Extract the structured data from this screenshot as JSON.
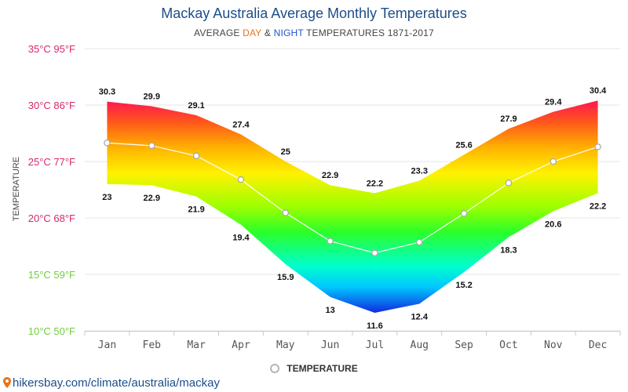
{
  "chart_data": {
    "type": "area",
    "title": "Mackay Australia Average Monthly Temperatures",
    "subtitle": {
      "prefix": "AVERAGE ",
      "day": "DAY",
      "amp": " & ",
      "night": "NIGHT",
      "suffix": " TEMPERATURES 1871-2017"
    },
    "ylabel": "TEMPERATURE",
    "ylim": [
      10,
      35
    ],
    "ytick_values": [
      35,
      30,
      25,
      20,
      15,
      10
    ],
    "ytick_labels": [
      "35°C 95°F",
      "30°C 86°F",
      "25°C 77°F",
      "20°C 68°F",
      "15°C 59°F",
      "10°C 50°F"
    ],
    "ytick_colors": [
      "#d6286e",
      "#d6286e",
      "#d6286e",
      "#d6286e",
      "#6fcf3b",
      "#6fcf3b"
    ],
    "categories": [
      "Jan",
      "Feb",
      "Mar",
      "Apr",
      "May",
      "Jun",
      "Jul",
      "Aug",
      "Sep",
      "Oct",
      "Nov",
      "Dec"
    ],
    "series": [
      {
        "name": "Day",
        "values": [
          30.3,
          29.9,
          29.1,
          27.4,
          25,
          22.9,
          22.2,
          23.3,
          25.6,
          27.9,
          29.4,
          30.4
        ]
      },
      {
        "name": "Night",
        "values": [
          23,
          22.9,
          21.9,
          19.4,
          15.9,
          13,
          11.6,
          12.4,
          15.2,
          18.3,
          20.6,
          22.2
        ]
      },
      {
        "name": "Temperature",
        "values": [
          26.65,
          26.4,
          25.5,
          23.4,
          20.45,
          17.95,
          16.9,
          17.85,
          20.4,
          23.1,
          25,
          26.3
        ]
      }
    ],
    "grid": true,
    "legend": {
      "label": "TEMPERATURE",
      "placement": "bottom-center"
    }
  },
  "source": "hikersbay.com/climate/australia/mackay",
  "colors": {
    "title": "#1d4e89",
    "day_accent": "#e8731b",
    "night_accent": "#1f55c7",
    "marker_stroke": "#b5b5b5"
  }
}
